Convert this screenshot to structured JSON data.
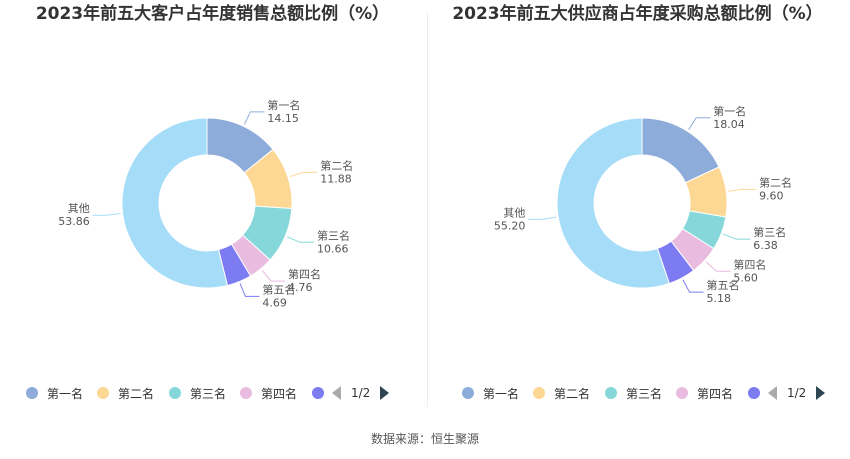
{
  "source_text": "数据来源：恒生聚源",
  "pager_text": "1/2",
  "chart_data": [
    {
      "type": "pie",
      "title": "2023年前五大客户占年度销售总额比例（%）",
      "categories": [
        "第一名",
        "第二名",
        "第三名",
        "第四名",
        "第五名",
        "其他"
      ],
      "values": [
        14.15,
        11.88,
        10.66,
        4.76,
        4.69,
        53.86
      ],
      "value_labels": [
        "14.15",
        "11.88",
        "10.66",
        "4.76",
        "4.69",
        "53.86"
      ],
      "colors": [
        "#8eacda",
        "#fdd794",
        "#86d7da",
        "#e8bbdf",
        "#7c7bf2",
        "#a5dcf8"
      ],
      "legend": [
        "第一名",
        "第二名",
        "第三名",
        "第四名"
      ]
    },
    {
      "type": "pie",
      "title": "2023年前五大供应商占年度采购总额比例（%）",
      "categories": [
        "第一名",
        "第二名",
        "第三名",
        "第四名",
        "第五名",
        "其他"
      ],
      "values": [
        18.04,
        9.6,
        6.38,
        5.6,
        5.18,
        55.2
      ],
      "value_labels": [
        "18.04",
        "9.60",
        "6.38",
        "5.60",
        "5.18",
        "55.20"
      ],
      "colors": [
        "#8eacda",
        "#fdd794",
        "#86d7da",
        "#e8bbdf",
        "#7c7bf2",
        "#a5dcf8"
      ],
      "legend": [
        "第一名",
        "第二名",
        "第三名",
        "第四名"
      ]
    }
  ]
}
